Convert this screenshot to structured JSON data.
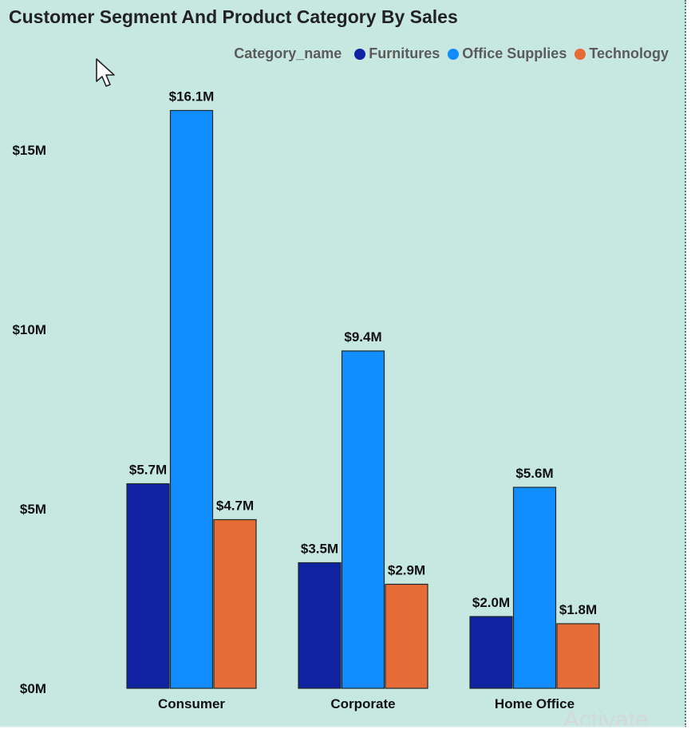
{
  "title": "Customer Segment And Product Category By Sales",
  "legend": {
    "title": "Category_name",
    "items": [
      {
        "label": "Furnitures",
        "color": "#0f22a0"
      },
      {
        "label": "Office Supplies",
        "color": "#118dff"
      },
      {
        "label": "Technology",
        "color": "#e66c37"
      }
    ]
  },
  "watermark": "Activate",
  "chart_data": {
    "type": "bar",
    "categories": [
      "Consumer",
      "Corporate",
      "Home Office"
    ],
    "series": [
      {
        "name": "Furnitures",
        "color": "#0f22a0",
        "values": [
          5.7,
          3.5,
          2.0
        ],
        "labels": [
          "$5.7M",
          "$3.5M",
          "$2.0M"
        ]
      },
      {
        "name": "Office Supplies",
        "color": "#118dff",
        "values": [
          16.1,
          9.4,
          5.6
        ],
        "labels": [
          "$16.1M",
          "$9.4M",
          "$5.6M"
        ]
      },
      {
        "name": "Technology",
        "color": "#e66c37",
        "values": [
          4.7,
          2.9,
          1.8
        ],
        "labels": [
          "$4.7M",
          "$2.9M",
          "$1.8M"
        ]
      }
    ],
    "y_ticks": [
      {
        "value": 0,
        "label": "$0M"
      },
      {
        "value": 5,
        "label": "$5M"
      },
      {
        "value": 10,
        "label": "$10M"
      },
      {
        "value": 15,
        "label": "$15M"
      }
    ],
    "ylim": [
      0,
      16.1
    ],
    "unit": "millions USD",
    "grid": false,
    "legend_position": "top-right"
  }
}
